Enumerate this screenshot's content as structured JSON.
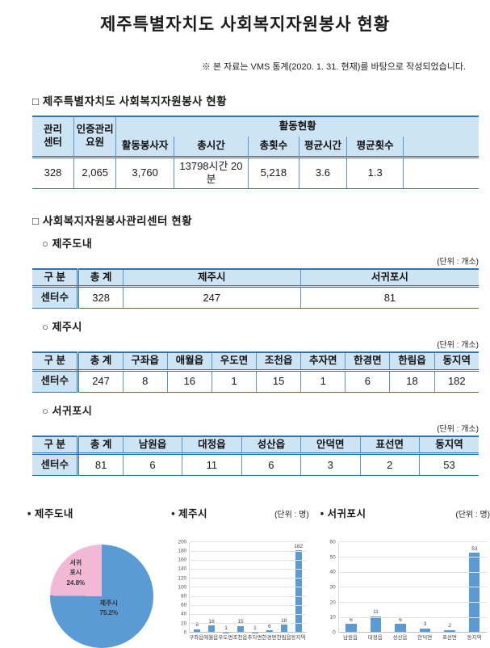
{
  "page": {
    "title": "제주특별자치도 사회복지자원봉사 현황",
    "note": "※ 본 자료는 VMS 통계(2020. 1. 31. 현재)를 바탕으로 작성되었습니다."
  },
  "colors": {
    "table_border_blue": "#2e74b5",
    "table_header_fill": "#cde4f5",
    "bar_blue": "#5b9bd5",
    "pie_pink": "#f2b9d7"
  },
  "section1": {
    "heading": "□ 제주특별자치도 사회복지자원봉사 현황",
    "table": {
      "col_manage_center": "관리\n센터",
      "col_cert_staff": "인증관리\n요원",
      "col_activity_group": "활동현황",
      "sub_headers": [
        "활동봉사자",
        "총시간",
        "총횟수",
        "평균시간",
        "평균횟수",
        ""
      ],
      "values": [
        "328",
        "2,065",
        "3,760",
        "13798시간 20분",
        "5,218",
        "3.6",
        "1.3",
        ""
      ]
    }
  },
  "section2": {
    "heading": "□ 사회복지자원봉사관리센터 현황",
    "unit_label": "(단위 : 개소)",
    "jeju_island": {
      "heading": "○ 제주도내",
      "headers": [
        "구 분",
        "총 계",
        "제주시",
        "서귀포시"
      ],
      "row": [
        "센터수",
        "328",
        "247",
        "81"
      ]
    },
    "jeju_city": {
      "heading": "○ 제주시",
      "headers": [
        "구 분",
        "총 계",
        "구좌읍",
        "애월읍",
        "우도면",
        "조천읍",
        "추자면",
        "한경면",
        "한림읍",
        "동지역"
      ],
      "row": [
        "센터수",
        "247",
        "8",
        "16",
        "1",
        "15",
        "1",
        "6",
        "18",
        "182"
      ]
    },
    "seogwipo_city": {
      "heading": "○ 서귀포시",
      "headers": [
        "구 분",
        "총 계",
        "남원읍",
        "대정읍",
        "성산읍",
        "안덕면",
        "표선면",
        "동지역"
      ],
      "row": [
        "센터수",
        "81",
        "6",
        "11",
        "6",
        "3",
        "2",
        "53"
      ]
    }
  },
  "chart_data": {
    "pie": {
      "type": "pie",
      "title": "• 제주도내",
      "labels": [
        "제주시",
        "서귀포시"
      ],
      "values": [
        75.2,
        24.8
      ],
      "colors": [
        "#5b9bd5",
        "#f2b9d7"
      ],
      "slice_displays": [
        "제주시\n75.2%",
        "서귀\n포시\n24.8%"
      ]
    },
    "jeju": {
      "type": "bar",
      "title": "• 제주시",
      "unit": "(단위 : 명)",
      "categories": [
        "구좌읍",
        "애월읍",
        "우도면",
        "조천읍",
        "추자면",
        "한경면",
        "한림읍",
        "동지역"
      ],
      "values": [
        8,
        16,
        1,
        15,
        1,
        6,
        18,
        182
      ],
      "ylim": [
        0,
        200
      ],
      "ystep": 20,
      "bar_color": "#5b9bd5"
    },
    "seogwipo": {
      "type": "bar",
      "title": "• 서귀포시",
      "unit": "(단위 : 명)",
      "categories": [
        "남원읍",
        "대정읍",
        "성산읍",
        "안덕면",
        "표선면",
        "동지역"
      ],
      "values": [
        6,
        11,
        6,
        3,
        2,
        53
      ],
      "ylim": [
        0,
        60
      ],
      "ystep": 10,
      "bar_color": "#5b9bd5"
    }
  }
}
